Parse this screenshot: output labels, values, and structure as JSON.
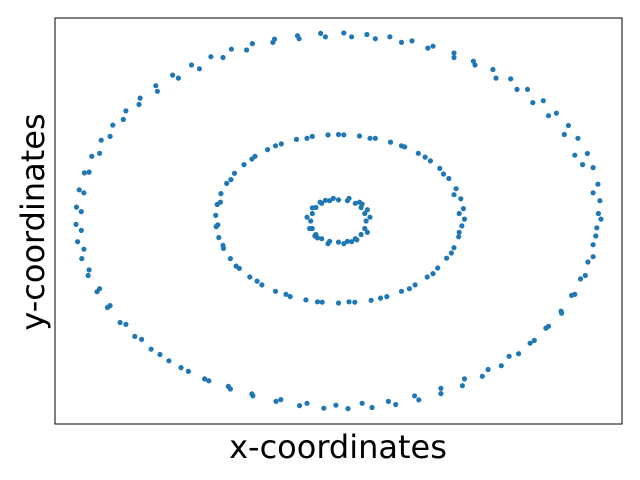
{
  "chart_data": {
    "type": "scatter",
    "xlabel": "x-coordinates",
    "ylabel": "y-coordinates",
    "xlim": [
      -1.08,
      1.08
    ],
    "ylim": [
      -1.08,
      1.08
    ],
    "ticks_visible": false,
    "grid": false,
    "marker_color": "#1f77b4",
    "series": [
      {
        "ring": "outer",
        "points": [
          [
            1.0,
            0.01
          ],
          [
            0.996,
            0.108
          ],
          [
            0.988,
            0.196
          ],
          [
            0.97,
            0.284
          ],
          [
            0.948,
            0.359
          ],
          [
            0.912,
            0.44
          ],
          [
            0.876,
            0.508
          ],
          [
            0.83,
            0.574
          ],
          [
            0.78,
            0.64
          ],
          [
            0.72,
            0.7
          ],
          [
            0.656,
            0.756
          ],
          [
            0.588,
            0.806
          ],
          [
            0.514,
            0.85
          ],
          [
            0.44,
            0.894
          ],
          [
            0.36,
            0.93
          ],
          [
            0.28,
            0.958
          ],
          [
            0.196,
            0.98
          ],
          [
            0.108,
            0.992
          ],
          [
            0.02,
            1.0
          ],
          [
            -0.068,
            0.998
          ],
          [
            -0.156,
            0.986
          ],
          [
            -0.244,
            0.968
          ],
          [
            -0.328,
            0.944
          ],
          [
            -0.408,
            0.914
          ],
          [
            -0.486,
            0.874
          ],
          [
            -0.56,
            0.83
          ],
          [
            -0.632,
            0.776
          ],
          [
            -0.696,
            0.72
          ],
          [
            -0.756,
            0.654
          ],
          [
            -0.81,
            0.586
          ],
          [
            -0.86,
            0.51
          ],
          [
            -0.904,
            0.43
          ],
          [
            -0.94,
            0.344
          ],
          [
            -0.968,
            0.256
          ],
          [
            -0.988,
            0.166
          ],
          [
            -0.998,
            0.074
          ],
          [
            -1.0,
            -0.018
          ],
          [
            -0.994,
            -0.11
          ],
          [
            -0.978,
            -0.2
          ],
          [
            -0.954,
            -0.29
          ],
          [
            -0.92,
            -0.376
          ],
          [
            -0.88,
            -0.46
          ],
          [
            -0.832,
            -0.54
          ],
          [
            -0.776,
            -0.614
          ],
          [
            -0.714,
            -0.682
          ],
          [
            -0.646,
            -0.744
          ],
          [
            -0.572,
            -0.8
          ],
          [
            -0.494,
            -0.85
          ],
          [
            -0.412,
            -0.894
          ],
          [
            -0.326,
            -0.93
          ],
          [
            -0.238,
            -0.96
          ],
          [
            -0.148,
            -0.982
          ],
          [
            -0.056,
            -0.996
          ],
          [
            0.036,
            -0.998
          ],
          [
            0.128,
            -0.992
          ],
          [
            0.218,
            -0.976
          ],
          [
            0.306,
            -0.952
          ],
          [
            0.39,
            -0.918
          ],
          [
            0.472,
            -0.876
          ],
          [
            0.548,
            -0.826
          ],
          [
            0.62,
            -0.77
          ],
          [
            0.686,
            -0.706
          ],
          [
            0.746,
            -0.636
          ],
          [
            0.8,
            -0.56
          ],
          [
            0.848,
            -0.48
          ],
          [
            0.888,
            -0.396
          ],
          [
            0.922,
            -0.308
          ],
          [
            0.95,
            -0.218
          ],
          [
            0.97,
            -0.126
          ],
          [
            0.984,
            -0.036
          ],
          [
            0.99,
            0.04
          ],
          [
            0.97,
            0.15
          ],
          [
            0.93,
            0.3
          ],
          [
            0.9,
            0.35
          ],
          [
            0.86,
            0.46
          ],
          [
            0.8,
            0.56
          ],
          [
            0.74,
            0.63
          ],
          [
            0.68,
            0.7
          ],
          [
            0.6,
            0.76
          ],
          [
            0.52,
            0.83
          ],
          [
            0.44,
            0.87
          ],
          [
            0.34,
            0.92
          ],
          [
            0.24,
            0.95
          ],
          [
            0.14,
            0.97
          ],
          [
            0.05,
            0.98
          ],
          [
            -0.05,
            0.98
          ],
          [
            -0.15,
            0.97
          ],
          [
            -0.25,
            0.95
          ],
          [
            -0.35,
            0.91
          ],
          [
            -0.44,
            0.87
          ],
          [
            -0.53,
            0.81
          ],
          [
            -0.61,
            0.76
          ],
          [
            -0.69,
            0.69
          ],
          [
            -0.76,
            0.62
          ],
          [
            -0.82,
            0.54
          ],
          [
            -0.87,
            0.45
          ],
          [
            -0.91,
            0.36
          ],
          [
            -0.95,
            0.26
          ],
          [
            -0.97,
            0.15
          ],
          [
            -0.98,
            0.05
          ],
          [
            -0.98,
            -0.05
          ],
          [
            -0.97,
            -0.15
          ],
          [
            -0.95,
            -0.26
          ],
          [
            -0.91,
            -0.36
          ],
          [
            -0.87,
            -0.45
          ],
          [
            -0.81,
            -0.55
          ],
          [
            -0.75,
            -0.63
          ],
          [
            -0.68,
            -0.71
          ],
          [
            -0.6,
            -0.78
          ],
          [
            -0.51,
            -0.84
          ],
          [
            -0.42,
            -0.88
          ],
          [
            -0.33,
            -0.92
          ],
          [
            -0.22,
            -0.95
          ],
          [
            -0.12,
            -0.97
          ],
          [
            -0.01,
            -0.98
          ],
          [
            0.09,
            -0.97
          ],
          [
            0.19,
            -0.96
          ],
          [
            0.29,
            -0.93
          ],
          [
            0.39,
            -0.89
          ],
          [
            0.48,
            -0.84
          ],
          [
            0.57,
            -0.79
          ],
          [
            0.65,
            -0.72
          ],
          [
            0.73,
            -0.65
          ],
          [
            0.79,
            -0.57
          ],
          [
            0.85,
            -0.49
          ],
          [
            0.9,
            -0.39
          ],
          [
            0.94,
            -0.29
          ],
          [
            0.97,
            -0.19
          ],
          [
            0.98,
            -0.08
          ]
        ]
      },
      {
        "ring": "middle",
        "points": [
          [
            0.48,
            0.01
          ],
          [
            0.476,
            0.066
          ],
          [
            0.466,
            0.118
          ],
          [
            0.448,
            0.172
          ],
          [
            0.42,
            0.226
          ],
          [
            0.386,
            0.28
          ],
          [
            0.35,
            0.32
          ],
          [
            0.304,
            0.36
          ],
          [
            0.252,
            0.394
          ],
          [
            0.198,
            0.42
          ],
          [
            0.14,
            0.44
          ],
          [
            0.08,
            0.452
          ],
          [
            0.02,
            0.458
          ],
          [
            -0.04,
            0.458
          ],
          [
            -0.1,
            0.45
          ],
          [
            -0.16,
            0.434
          ],
          [
            -0.218,
            0.41
          ],
          [
            -0.27,
            0.38
          ],
          [
            -0.318,
            0.344
          ],
          [
            -0.36,
            0.3
          ],
          [
            -0.396,
            0.254
          ],
          [
            -0.426,
            0.2
          ],
          [
            -0.448,
            0.146
          ],
          [
            -0.462,
            0.088
          ],
          [
            -0.468,
            0.03
          ],
          [
            -0.466,
            -0.03
          ],
          [
            -0.456,
            -0.088
          ],
          [
            -0.438,
            -0.146
          ],
          [
            -0.412,
            -0.2
          ],
          [
            -0.378,
            -0.252
          ],
          [
            -0.338,
            -0.298
          ],
          [
            -0.292,
            -0.34
          ],
          [
            -0.24,
            -0.374
          ],
          [
            -0.184,
            -0.402
          ],
          [
            -0.124,
            -0.42
          ],
          [
            -0.062,
            -0.432
          ],
          [
            0.0,
            -0.436
          ],
          [
            0.062,
            -0.432
          ],
          [
            0.124,
            -0.422
          ],
          [
            0.184,
            -0.402
          ],
          [
            0.24,
            -0.374
          ],
          [
            0.292,
            -0.34
          ],
          [
            0.338,
            -0.298
          ],
          [
            0.378,
            -0.25
          ],
          [
            0.412,
            -0.198
          ],
          [
            0.44,
            -0.142
          ],
          [
            0.458,
            -0.084
          ],
          [
            0.47,
            -0.026
          ],
          [
            0.46,
            0.04
          ],
          [
            0.44,
            0.14
          ],
          [
            0.4,
            0.25
          ],
          [
            0.33,
            0.34
          ],
          [
            0.24,
            0.4
          ],
          [
            0.12,
            0.44
          ],
          [
            0.0,
            0.46
          ],
          [
            -0.12,
            0.44
          ],
          [
            -0.24,
            0.4
          ],
          [
            -0.33,
            0.33
          ],
          [
            -0.41,
            0.22
          ],
          [
            -0.45,
            0.1
          ],
          [
            -0.46,
            -0.02
          ],
          [
            -0.44,
            -0.13
          ],
          [
            -0.39,
            -0.24
          ],
          [
            -0.31,
            -0.32
          ],
          [
            -0.2,
            -0.39
          ],
          [
            -0.08,
            -0.43
          ],
          [
            0.04,
            -0.43
          ],
          [
            0.16,
            -0.41
          ],
          [
            0.27,
            -0.36
          ],
          [
            0.36,
            -0.28
          ],
          [
            0.43,
            -0.17
          ],
          [
            0.46,
            -0.06
          ]
        ]
      },
      {
        "ring": "inner",
        "points": [
          [
            0.105,
            0.0
          ],
          [
            0.1,
            0.04
          ],
          [
            0.086,
            0.072
          ],
          [
            0.064,
            0.094
          ],
          [
            0.034,
            0.108
          ],
          [
            0.0,
            0.112
          ],
          [
            -0.034,
            0.108
          ],
          [
            -0.064,
            0.094
          ],
          [
            -0.086,
            0.072
          ],
          [
            -0.1,
            0.04
          ],
          [
            -0.106,
            0.0
          ],
          [
            -0.1,
            -0.04
          ],
          [
            -0.086,
            -0.072
          ],
          [
            -0.064,
            -0.094
          ],
          [
            -0.034,
            -0.108
          ],
          [
            0.0,
            -0.112
          ],
          [
            0.034,
            -0.108
          ],
          [
            0.064,
            -0.094
          ],
          [
            0.086,
            -0.072
          ],
          [
            0.1,
            -0.04
          ],
          [
            0.12,
            0.02
          ],
          [
            0.11,
            0.06
          ],
          [
            0.08,
            0.1
          ],
          [
            0.04,
            0.12
          ],
          [
            -0.02,
            0.12
          ],
          [
            -0.07,
            0.1
          ],
          [
            -0.1,
            0.07
          ],
          [
            -0.12,
            0.02
          ],
          [
            -0.11,
            -0.04
          ],
          [
            -0.08,
            -0.09
          ],
          [
            -0.04,
            -0.12
          ],
          [
            0.02,
            -0.12
          ],
          [
            0.07,
            -0.1
          ],
          [
            0.11,
            -0.06
          ],
          [
            0.09,
            0.09
          ],
          [
            -0.09,
            -0.08
          ],
          [
            -0.05,
            0.11
          ],
          [
            0.05,
            -0.11
          ]
        ]
      }
    ]
  }
}
